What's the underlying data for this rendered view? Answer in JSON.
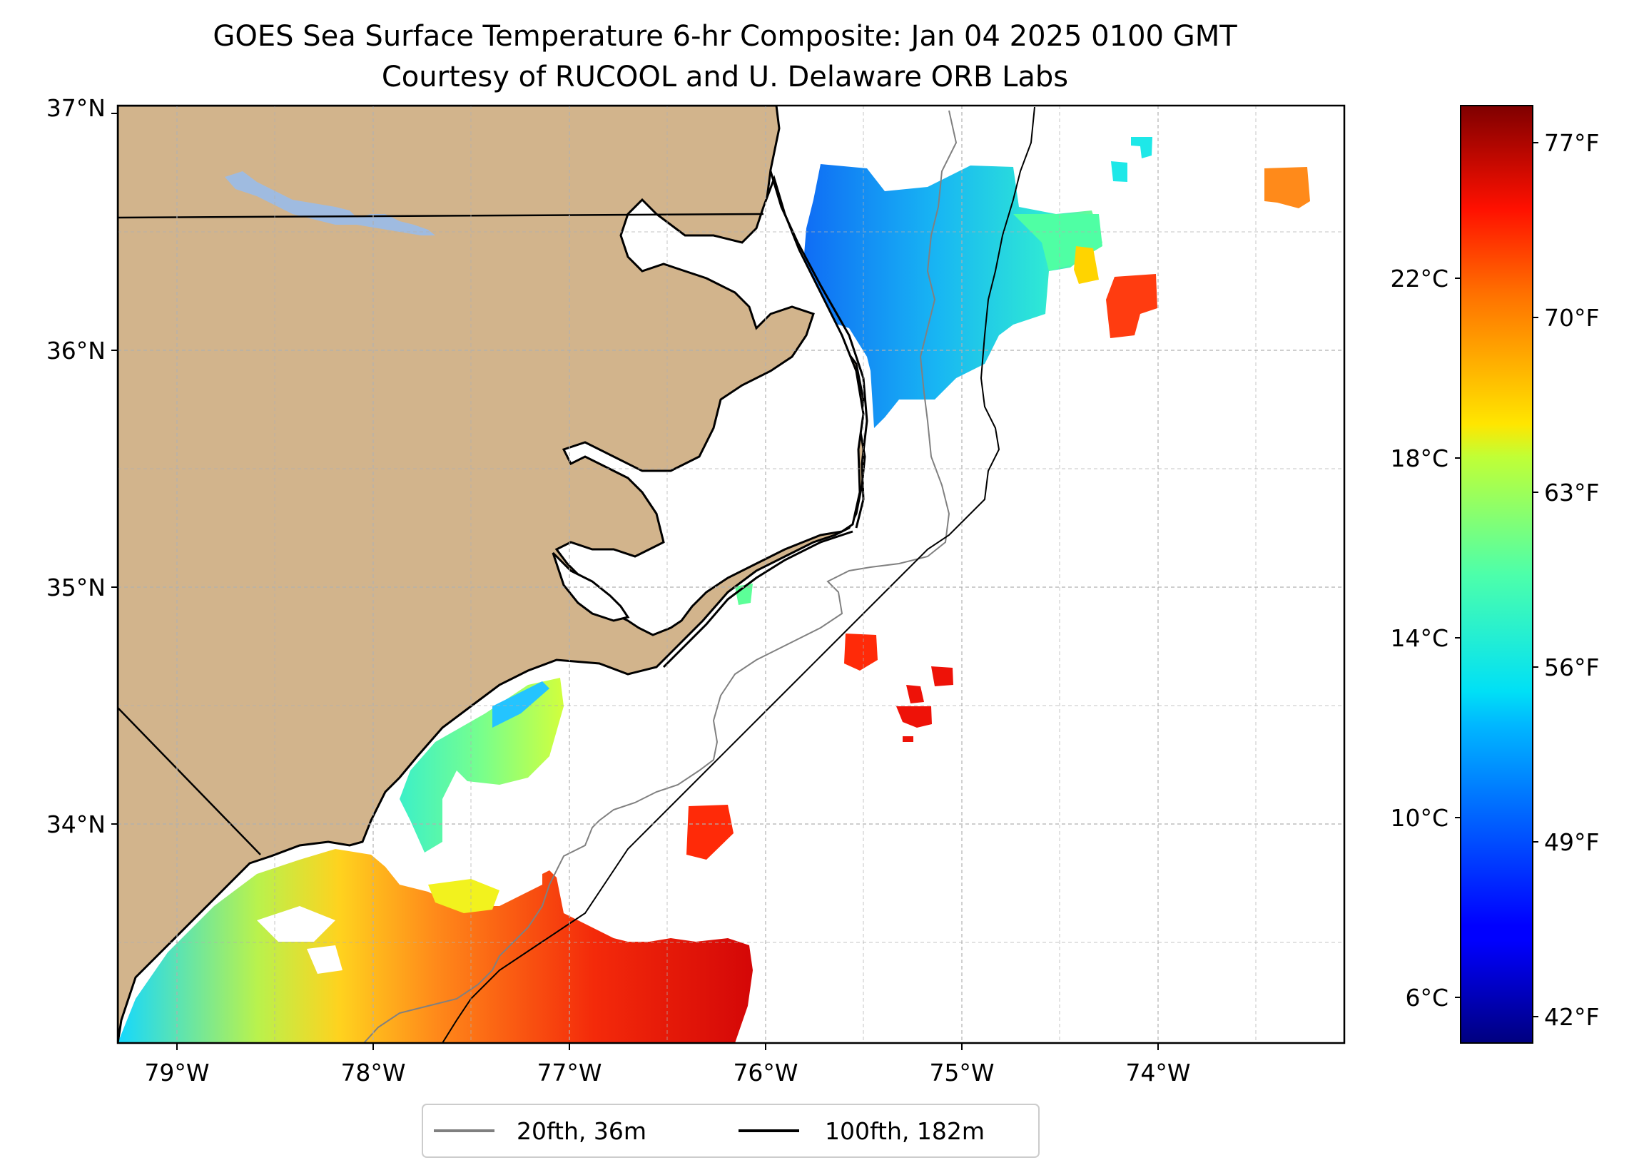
{
  "title_line1": "GOES Sea Surface Temperature 6-hr Composite: Jan 04 2025 0100 GMT",
  "title_line2": "Courtesy of RUCOOL and U. Delaware ORB Labs",
  "lat_ticks": [
    "37°N",
    "36°N",
    "35°N",
    "34°N"
  ],
  "lon_ticks": [
    "79°W",
    "78°W",
    "77°W",
    "76°W",
    "75°W",
    "74°W"
  ],
  "colorbar": {
    "celsius_ticks": [
      "22°C",
      "18°C",
      "14°C",
      "10°C",
      "6°C"
    ],
    "fahrenheit_ticks": [
      "77°F",
      "70°F",
      "63°F",
      "56°F",
      "49°F",
      "42°F"
    ]
  },
  "legend": {
    "items": [
      {
        "label": "20fth, 36m",
        "color": "#808080"
      },
      {
        "label": "100fth, 182m",
        "color": "#000000"
      }
    ]
  },
  "colors": {
    "land": "#d2b48c",
    "lakes": "#9fbbe0",
    "isobath_20fth": "#808080",
    "isobath_100fth": "#000000",
    "grid": "#b0b0b0"
  }
}
